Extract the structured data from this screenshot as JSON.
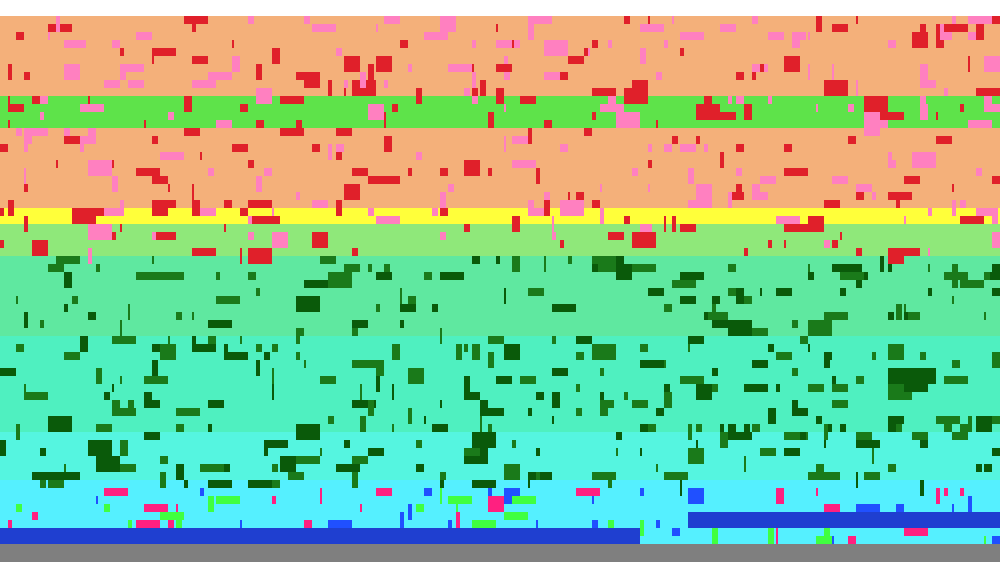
{
  "screen": {
    "description_visible_text": ""
  },
  "colors": {
    "background_top": "#ffffff",
    "band_colors": [
      "#f4b07a",
      "#5ee34a",
      "#f4b07a",
      "#f4b07a",
      "#ffff3a",
      "#8fe87a",
      "#5fe8a0",
      "#4ff0c0",
      "#55f5e0",
      "#55f0ff",
      "#1f3fd0",
      "#7f7f7f"
    ],
    "noise_colors": [
      "#e0202a",
      "#ff80c0",
      "#1a7a1a",
      "#0a5a0a",
      "#ff2080",
      "#40ff40",
      "#2050ff"
    ],
    "bottom_bar": "#7f7f7f",
    "blue_strip": "#1f3fd0"
  }
}
